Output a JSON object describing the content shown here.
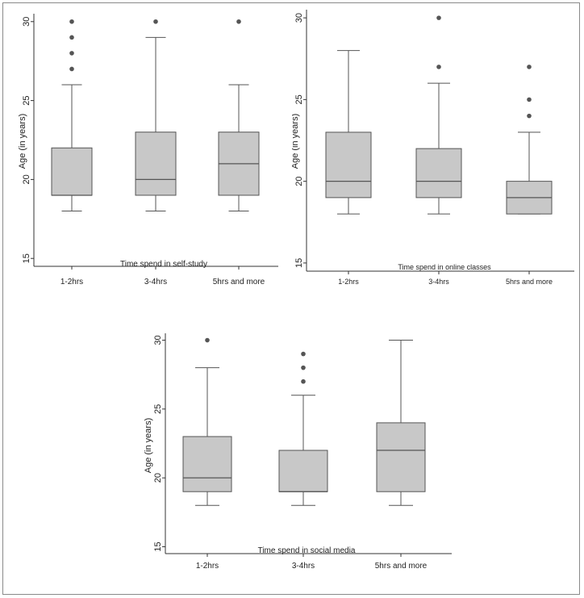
{
  "colors": {
    "box_fill": "#c8c8c8",
    "stroke": "#555555",
    "outlier": "#555555",
    "frame": "#8a8a8a"
  },
  "chart_data": [
    {
      "id": "self_study",
      "type": "box",
      "title": "",
      "xlabel": "Time spend in self-study",
      "ylabel": "Age (in years)",
      "ylim": [
        14.5,
        30.5
      ],
      "yticks": [
        15,
        20,
        25,
        30
      ],
      "categories": [
        "1-2hrs",
        "3-4hrs",
        "5hrs and more"
      ],
      "boxes": [
        {
          "min": 18,
          "q1": 19,
          "median": 19,
          "q3": 22,
          "max": 26,
          "outliers": [
            27,
            28,
            29,
            30
          ]
        },
        {
          "min": 18,
          "q1": 19,
          "median": 20,
          "q3": 23,
          "max": 29,
          "outliers": [
            30
          ]
        },
        {
          "min": 18,
          "q1": 19,
          "median": 21,
          "q3": 23,
          "max": 26,
          "outliers": [
            30
          ]
        }
      ]
    },
    {
      "id": "online_classes",
      "type": "box",
      "title": "",
      "xlabel": "Time spend in online classes",
      "ylabel": "Age (in years)",
      "ylim": [
        14.5,
        30.5
      ],
      "yticks": [
        15,
        20,
        25,
        30
      ],
      "categories": [
        "1-2hrs",
        "3-4hrs",
        "5hrs and more"
      ],
      "boxes": [
        {
          "min": 18,
          "q1": 19,
          "median": 20,
          "q3": 23,
          "max": 28,
          "outliers": []
        },
        {
          "min": 18,
          "q1": 19,
          "median": 20,
          "q3": 22,
          "max": 26,
          "outliers": [
            27,
            30
          ]
        },
        {
          "min": 18,
          "q1": 18,
          "median": 19,
          "q3": 20,
          "max": 23,
          "outliers": [
            24,
            25,
            27
          ]
        }
      ]
    },
    {
      "id": "social_media",
      "type": "box",
      "title": "",
      "xlabel": "Time spend in social media",
      "ylabel": "Age (in years)",
      "ylim": [
        14.5,
        30.5
      ],
      "yticks": [
        15,
        20,
        25,
        30
      ],
      "categories": [
        "1-2hrs",
        "3-4hrs",
        "5hrs and more"
      ],
      "boxes": [
        {
          "min": 18,
          "q1": 19,
          "median": 20,
          "q3": 23,
          "max": 28,
          "outliers": [
            30
          ]
        },
        {
          "min": 18,
          "q1": 19,
          "median": 19,
          "q3": 22,
          "max": 26,
          "outliers": [
            27,
            28,
            29
          ]
        },
        {
          "min": 18,
          "q1": 19,
          "median": 22,
          "q3": 24,
          "max": 30,
          "outliers": []
        }
      ]
    }
  ]
}
